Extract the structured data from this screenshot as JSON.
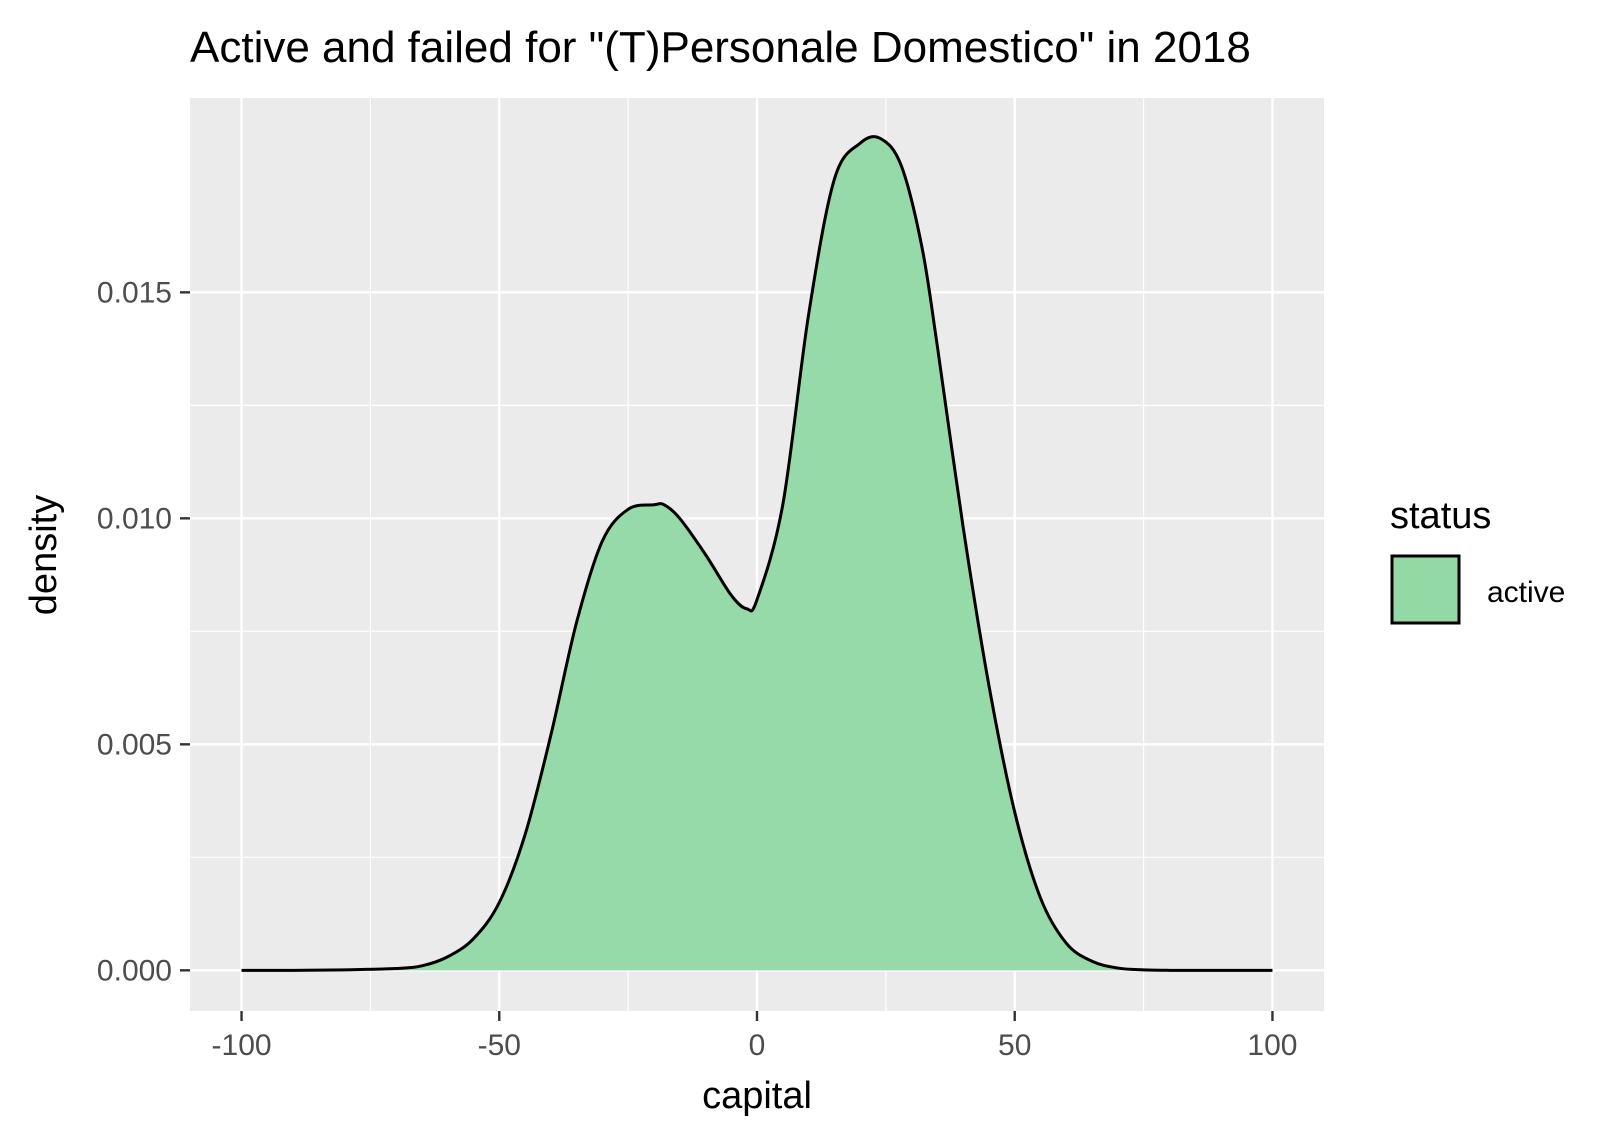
{
  "chart_data": {
    "type": "area",
    "title": "Active and failed for \"(T)Personale Domestico\" in 2018",
    "xlabel": "capital",
    "ylabel": "density",
    "xlim": [
      -110,
      110
    ],
    "ylim": [
      -0.0009,
      0.0193
    ],
    "x_ticks": [
      -100,
      -50,
      0,
      50,
      100
    ],
    "x_tick_labels": [
      "-100",
      "-50",
      "0",
      "50",
      "100"
    ],
    "y_ticks": [
      0,
      0.005,
      0.01,
      0.015
    ],
    "y_tick_labels": [
      "0.000",
      "0.005",
      "0.010",
      "0.015"
    ],
    "grid": true,
    "legend": {
      "title": "status",
      "position": "right"
    },
    "series": [
      {
        "name": "active",
        "color": "#93d9a6",
        "line_color": "#000000",
        "x": [
          -100,
          -90,
          -80,
          -70,
          -65,
          -60,
          -55,
          -50,
          -45,
          -40,
          -35,
          -30,
          -25,
          -20,
          -18,
          -15,
          -10,
          -5,
          -2,
          0,
          5,
          10,
          15,
          20,
          24,
          28,
          32,
          35,
          40,
          45,
          50,
          55,
          60,
          65,
          70,
          75,
          80,
          90,
          100
        ],
        "y": [
          0,
          0,
          1e-05,
          4e-05,
          0.0001,
          0.0003,
          0.0007,
          0.0015,
          0.003,
          0.0052,
          0.0077,
          0.0095,
          0.0102,
          0.0103,
          0.0103,
          0.01,
          0.0092,
          0.0083,
          0.008,
          0.0082,
          0.0103,
          0.0145,
          0.0175,
          0.0183,
          0.0184,
          0.0178,
          0.016,
          0.0138,
          0.0098,
          0.0063,
          0.0035,
          0.0016,
          0.0006,
          0.0002,
          5e-05,
          1e-05,
          0,
          0,
          0
        ]
      }
    ]
  }
}
